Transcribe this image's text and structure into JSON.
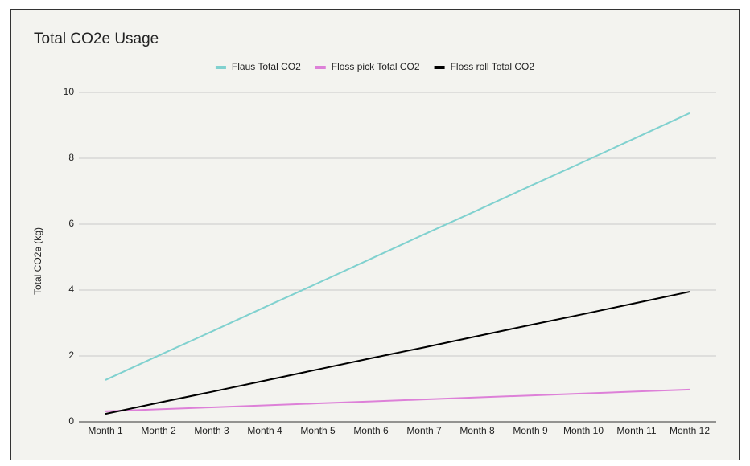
{
  "chart_data": {
    "type": "line",
    "title": "Total CO2e Usage",
    "y_label": "Total CO2e (kg)",
    "categories": [
      "Month 1",
      "Month 2",
      "Month 3",
      "Month 4",
      "Month 5",
      "Month 6",
      "Month 7",
      "Month 8",
      "Month 9",
      "Month 10",
      "Month 11",
      "Month 12"
    ],
    "series": [
      {
        "name": "Flaus Total CO2",
        "color": "#80d1cf",
        "values": [
          1.27,
          2.01,
          2.74,
          3.48,
          4.21,
          4.95,
          5.69,
          6.42,
          7.16,
          7.89,
          8.63,
          9.37
        ]
      },
      {
        "name": "Floss pick Total CO2",
        "color": "#dd80d8",
        "values": [
          0.32,
          0.38,
          0.44,
          0.5,
          0.56,
          0.62,
          0.68,
          0.74,
          0.8,
          0.86,
          0.92,
          0.98
        ]
      },
      {
        "name": "Floss roll Total CO2",
        "color": "#000000",
        "values": [
          0.24,
          0.58,
          0.91,
          1.25,
          1.59,
          1.93,
          2.26,
          2.6,
          2.94,
          3.27,
          3.61,
          3.95
        ]
      }
    ],
    "ylim": [
      0,
      10
    ],
    "yticks": [
      0,
      2,
      4,
      6,
      8,
      10
    ],
    "grid": true,
    "legend": "top"
  }
}
